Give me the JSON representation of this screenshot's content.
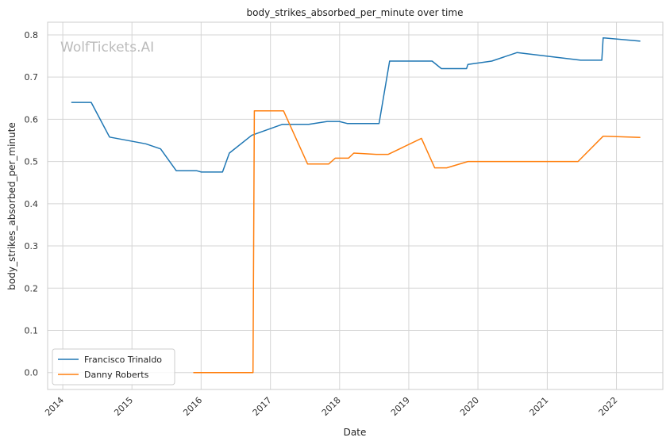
{
  "chart_data": {
    "type": "line",
    "title": "body_strikes_absorbed_per_minute over time",
    "xlabel": "Date",
    "ylabel": "body_strikes_absorbed_per_minute",
    "watermark": "WolfTickets.AI",
    "x_range": [
      "2013-10-13",
      "2022-09-03"
    ],
    "ylim": [
      -0.04,
      0.83
    ],
    "x_ticks": [
      "2014",
      "2015",
      "2016",
      "2017",
      "2018",
      "2019",
      "2020",
      "2021",
      "2022"
    ],
    "y_ticks": [
      "0.0",
      "0.1",
      "0.2",
      "0.3",
      "0.4",
      "0.5",
      "0.6",
      "0.7",
      "0.8"
    ],
    "grid": true,
    "legend_position": "lower-left",
    "series": [
      {
        "name": "Francisco Trinaldo",
        "color": "#1f77b4",
        "points": [
          [
            "2014-02-15",
            0.64
          ],
          [
            "2014-05-31",
            0.64
          ],
          [
            "2014-09-05",
            0.558
          ],
          [
            "2015-03-15",
            0.542
          ],
          [
            "2015-06-01",
            0.53
          ],
          [
            "2015-08-23",
            0.478
          ],
          [
            "2015-12-10",
            0.478
          ],
          [
            "2016-01-02",
            0.475
          ],
          [
            "2016-04-23",
            0.475
          ],
          [
            "2016-05-29",
            0.52
          ],
          [
            "2016-09-24",
            0.562
          ],
          [
            "2017-03-04",
            0.588
          ],
          [
            "2017-07-22",
            0.588
          ],
          [
            "2017-10-28",
            0.595
          ],
          [
            "2017-12-30",
            0.595
          ],
          [
            "2018-02-10",
            0.59
          ],
          [
            "2018-07-28",
            0.59
          ],
          [
            "2018-09-22",
            0.738
          ],
          [
            "2019-05-04",
            0.738
          ],
          [
            "2019-06-22",
            0.72
          ],
          [
            "2019-11-02",
            0.72
          ],
          [
            "2019-11-09",
            0.73
          ],
          [
            "2020-03-14",
            0.738
          ],
          [
            "2020-07-25",
            0.758
          ],
          [
            "2021-06-26",
            0.74
          ],
          [
            "2021-10-16",
            0.74
          ],
          [
            "2021-10-23",
            0.793
          ],
          [
            "2022-05-07",
            0.785
          ]
        ]
      },
      {
        "name": "Danny Roberts",
        "color": "#ff7f0e",
        "points": [
          [
            "2015-11-21",
            0.0
          ],
          [
            "2016-10-01",
            0.0
          ],
          [
            "2016-10-08",
            0.62
          ],
          [
            "2017-03-11",
            0.62
          ],
          [
            "2017-07-16",
            0.494
          ],
          [
            "2017-11-04",
            0.494
          ],
          [
            "2017-12-09",
            0.508
          ],
          [
            "2018-02-17",
            0.508
          ],
          [
            "2018-03-17",
            0.52
          ],
          [
            "2018-07-14",
            0.517
          ],
          [
            "2018-09-15",
            0.517
          ],
          [
            "2019-03-09",
            0.555
          ],
          [
            "2019-05-18",
            0.485
          ],
          [
            "2019-07-20",
            0.485
          ],
          [
            "2019-11-09",
            0.5
          ],
          [
            "2021-06-12",
            0.5
          ],
          [
            "2021-10-23",
            0.56
          ],
          [
            "2022-05-07",
            0.557
          ]
        ]
      }
    ]
  }
}
